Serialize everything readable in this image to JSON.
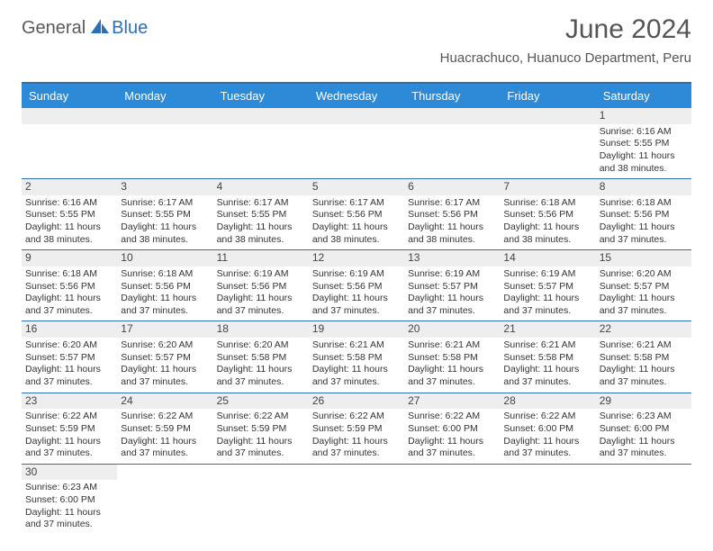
{
  "logo": {
    "word1": "General",
    "word2": "Blue"
  },
  "title": "June 2024",
  "subtitle": "Huacrachuco, Huanuco Department, Peru",
  "colors": {
    "header_bg": "#2d8ad6",
    "accent": "#2d6fb5",
    "shade": "#eeeeee",
    "text": "#333333",
    "title_color": "#555555"
  },
  "day_headers": [
    "Sunday",
    "Monday",
    "Tuesday",
    "Wednesday",
    "Thursday",
    "Friday",
    "Saturday"
  ],
  "calendar": {
    "first_day_index": 6,
    "days": [
      {
        "n": 1,
        "sunrise": "6:16 AM",
        "sunset": "5:55 PM",
        "daylight": "11 hours and 38 minutes."
      },
      {
        "n": 2,
        "sunrise": "6:16 AM",
        "sunset": "5:55 PM",
        "daylight": "11 hours and 38 minutes."
      },
      {
        "n": 3,
        "sunrise": "6:17 AM",
        "sunset": "5:55 PM",
        "daylight": "11 hours and 38 minutes."
      },
      {
        "n": 4,
        "sunrise": "6:17 AM",
        "sunset": "5:55 PM",
        "daylight": "11 hours and 38 minutes."
      },
      {
        "n": 5,
        "sunrise": "6:17 AM",
        "sunset": "5:56 PM",
        "daylight": "11 hours and 38 minutes."
      },
      {
        "n": 6,
        "sunrise": "6:17 AM",
        "sunset": "5:56 PM",
        "daylight": "11 hours and 38 minutes."
      },
      {
        "n": 7,
        "sunrise": "6:18 AM",
        "sunset": "5:56 PM",
        "daylight": "11 hours and 38 minutes."
      },
      {
        "n": 8,
        "sunrise": "6:18 AM",
        "sunset": "5:56 PM",
        "daylight": "11 hours and 37 minutes."
      },
      {
        "n": 9,
        "sunrise": "6:18 AM",
        "sunset": "5:56 PM",
        "daylight": "11 hours and 37 minutes."
      },
      {
        "n": 10,
        "sunrise": "6:18 AM",
        "sunset": "5:56 PM",
        "daylight": "11 hours and 37 minutes."
      },
      {
        "n": 11,
        "sunrise": "6:19 AM",
        "sunset": "5:56 PM",
        "daylight": "11 hours and 37 minutes."
      },
      {
        "n": 12,
        "sunrise": "6:19 AM",
        "sunset": "5:56 PM",
        "daylight": "11 hours and 37 minutes."
      },
      {
        "n": 13,
        "sunrise": "6:19 AM",
        "sunset": "5:57 PM",
        "daylight": "11 hours and 37 minutes."
      },
      {
        "n": 14,
        "sunrise": "6:19 AM",
        "sunset": "5:57 PM",
        "daylight": "11 hours and 37 minutes."
      },
      {
        "n": 15,
        "sunrise": "6:20 AM",
        "sunset": "5:57 PM",
        "daylight": "11 hours and 37 minutes."
      },
      {
        "n": 16,
        "sunrise": "6:20 AM",
        "sunset": "5:57 PM",
        "daylight": "11 hours and 37 minutes."
      },
      {
        "n": 17,
        "sunrise": "6:20 AM",
        "sunset": "5:57 PM",
        "daylight": "11 hours and 37 minutes."
      },
      {
        "n": 18,
        "sunrise": "6:20 AM",
        "sunset": "5:58 PM",
        "daylight": "11 hours and 37 minutes."
      },
      {
        "n": 19,
        "sunrise": "6:21 AM",
        "sunset": "5:58 PM",
        "daylight": "11 hours and 37 minutes."
      },
      {
        "n": 20,
        "sunrise": "6:21 AM",
        "sunset": "5:58 PM",
        "daylight": "11 hours and 37 minutes."
      },
      {
        "n": 21,
        "sunrise": "6:21 AM",
        "sunset": "5:58 PM",
        "daylight": "11 hours and 37 minutes."
      },
      {
        "n": 22,
        "sunrise": "6:21 AM",
        "sunset": "5:58 PM",
        "daylight": "11 hours and 37 minutes."
      },
      {
        "n": 23,
        "sunrise": "6:22 AM",
        "sunset": "5:59 PM",
        "daylight": "11 hours and 37 minutes."
      },
      {
        "n": 24,
        "sunrise": "6:22 AM",
        "sunset": "5:59 PM",
        "daylight": "11 hours and 37 minutes."
      },
      {
        "n": 25,
        "sunrise": "6:22 AM",
        "sunset": "5:59 PM",
        "daylight": "11 hours and 37 minutes."
      },
      {
        "n": 26,
        "sunrise": "6:22 AM",
        "sunset": "5:59 PM",
        "daylight": "11 hours and 37 minutes."
      },
      {
        "n": 27,
        "sunrise": "6:22 AM",
        "sunset": "6:00 PM",
        "daylight": "11 hours and 37 minutes."
      },
      {
        "n": 28,
        "sunrise": "6:22 AM",
        "sunset": "6:00 PM",
        "daylight": "11 hours and 37 minutes."
      },
      {
        "n": 29,
        "sunrise": "6:23 AM",
        "sunset": "6:00 PM",
        "daylight": "11 hours and 37 minutes."
      },
      {
        "n": 30,
        "sunrise": "6:23 AM",
        "sunset": "6:00 PM",
        "daylight": "11 hours and 37 minutes."
      }
    ]
  },
  "labels": {
    "sunrise": "Sunrise:",
    "sunset": "Sunset:",
    "daylight": "Daylight:"
  }
}
